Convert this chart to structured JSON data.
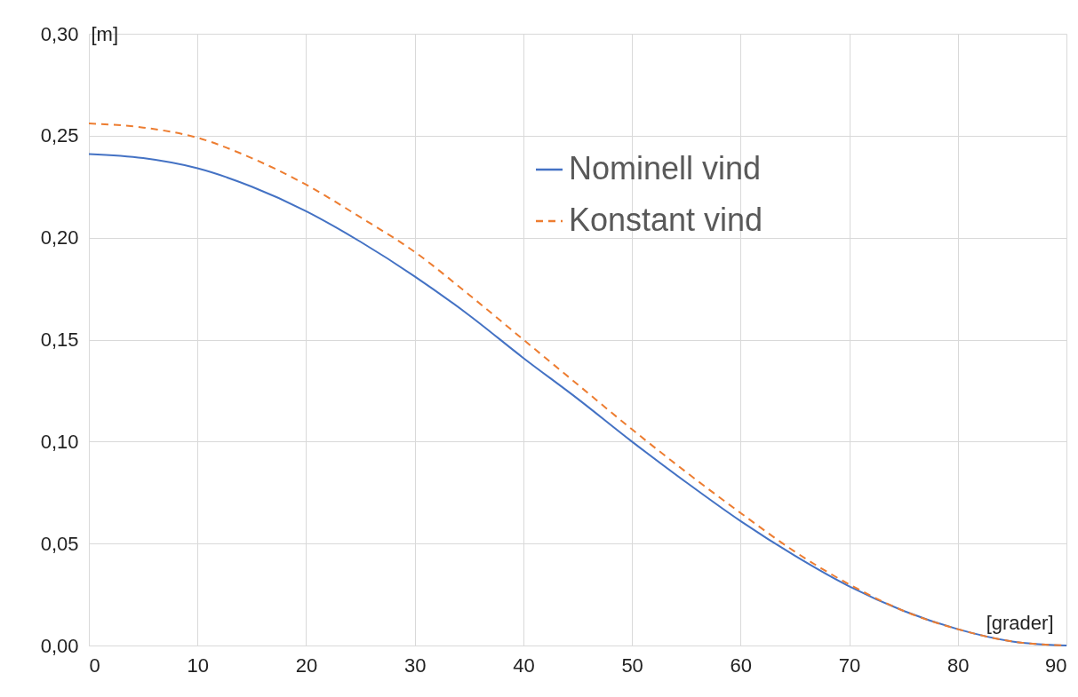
{
  "chart_data": {
    "type": "line",
    "xlabel": "[grader]",
    "ylabel": "[m]",
    "x": [
      0,
      5,
      10,
      15,
      20,
      25,
      30,
      35,
      40,
      45,
      50,
      55,
      60,
      65,
      70,
      75,
      80,
      85,
      90
    ],
    "series": [
      {
        "name": "Nominell vind",
        "color": "#4472c4",
        "line_style": "solid",
        "values": [
          0.241,
          0.239,
          0.234,
          0.225,
          0.213,
          0.198,
          0.181,
          0.162,
          0.141,
          0.121,
          0.1,
          0.08,
          0.061,
          0.044,
          0.029,
          0.017,
          0.008,
          0.002,
          0.0
        ]
      },
      {
        "name": "Konstant vind",
        "color": "#ed7d31",
        "line_style": "dashed",
        "values": [
          0.256,
          0.254,
          0.249,
          0.239,
          0.226,
          0.21,
          0.193,
          0.172,
          0.15,
          0.128,
          0.106,
          0.085,
          0.065,
          0.046,
          0.03,
          0.017,
          0.008,
          0.002,
          0.0
        ]
      }
    ],
    "xlim": [
      0,
      90
    ],
    "xticks": [
      0,
      10,
      20,
      30,
      40,
      50,
      60,
      70,
      80,
      90
    ],
    "ylim": [
      0,
      0.3
    ],
    "yticks": [
      {
        "value": 0,
        "label": "0,00"
      },
      {
        "value": 0.05,
        "label": "0,05"
      },
      {
        "value": 0.1,
        "label": "0,10"
      },
      {
        "value": 0.15,
        "label": "0,15"
      },
      {
        "value": 0.2,
        "label": "0,20"
      },
      {
        "value": 0.25,
        "label": "0,25"
      },
      {
        "value": 0.3,
        "label": "0,30"
      }
    ],
    "grid": true,
    "legend": "top right",
    "marker": "none"
  }
}
